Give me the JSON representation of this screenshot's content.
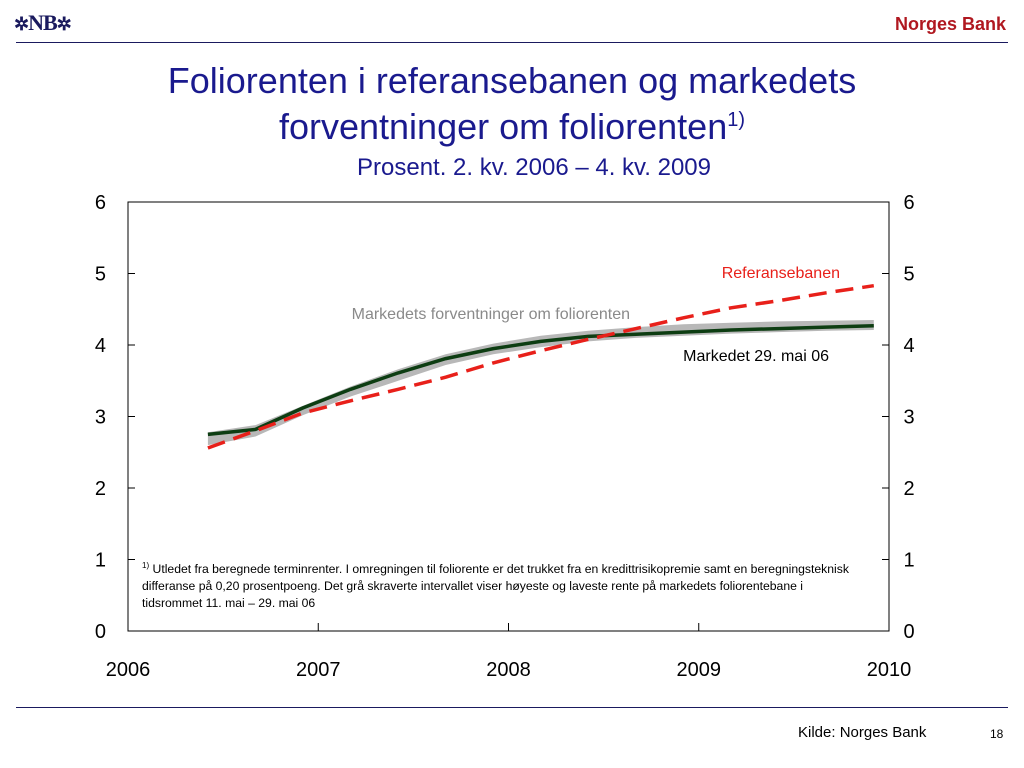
{
  "header": {
    "logo_text": "NB",
    "logo_ornament": "✲",
    "brand": "Norges Bank"
  },
  "title": {
    "line1": "Foliorenten i referansebanen og markedets",
    "line2": "forventninger om foliorenten",
    "superscript": "1)",
    "subtitle": "Prosent. 2. kv. 2006 – 4. kv. 2009"
  },
  "chart_data": {
    "type": "line",
    "xlim": [
      2006,
      2010
    ],
    "ylim": [
      0,
      6
    ],
    "x_ticks": [
      "2006",
      "2007",
      "2008",
      "2009",
      "2010"
    ],
    "y_ticks_left": [
      "0",
      "1",
      "2",
      "3",
      "4",
      "5",
      "6"
    ],
    "y_ticks_right": [
      "0",
      "1",
      "2",
      "3",
      "4",
      "5",
      "6"
    ],
    "colors": {
      "referansebanen": "#e8201a",
      "markedet": "#0d3d12",
      "band": "#b8b8b8",
      "band_label": "#8a8a8a"
    },
    "series": [
      {
        "name": "Referansebanen",
        "style": "dashed",
        "x": [
          2006.42,
          2006.67,
          2006.92,
          2007.17,
          2007.42,
          2007.67,
          2007.92,
          2008.17,
          2008.42,
          2008.67,
          2008.92,
          2009.17,
          2009.42,
          2009.67,
          2009.92
        ],
        "values": [
          2.56,
          2.8,
          3.05,
          3.22,
          3.38,
          3.55,
          3.75,
          3.92,
          4.08,
          4.23,
          4.38,
          4.52,
          4.62,
          4.73,
          4.83
        ]
      },
      {
        "name": "Markedet 29. mai 06",
        "style": "solid",
        "x": [
          2006.42,
          2006.67,
          2006.92,
          2007.17,
          2007.42,
          2007.67,
          2007.92,
          2008.17,
          2008.42,
          2008.67,
          2008.92,
          2009.17,
          2009.42,
          2009.67,
          2009.92
        ],
        "values": [
          2.75,
          2.82,
          3.12,
          3.38,
          3.61,
          3.81,
          3.95,
          4.05,
          4.12,
          4.15,
          4.18,
          4.21,
          4.23,
          4.25,
          4.27
        ]
      },
      {
        "name": "Markedets forventninger om foliorenten",
        "style": "band",
        "x": [
          2006.42,
          2006.67,
          2006.92,
          2007.17,
          2007.42,
          2007.67,
          2007.92,
          2008.17,
          2008.42,
          2008.67,
          2008.92,
          2009.17,
          2009.42,
          2009.67,
          2009.92
        ],
        "upper": [
          2.78,
          2.88,
          3.15,
          3.42,
          3.66,
          3.87,
          4.02,
          4.13,
          4.2,
          4.25,
          4.29,
          4.31,
          4.33,
          4.34,
          4.35
        ],
        "lower": [
          2.6,
          2.72,
          3.02,
          3.28,
          3.5,
          3.72,
          3.87,
          3.97,
          4.05,
          4.1,
          4.13,
          4.16,
          4.18,
          4.2,
          4.21
        ]
      }
    ],
    "annotations": {
      "referansebanen": "Referansebanen",
      "band": "Markedets forventninger om foliorenten",
      "markedet": "Markedet 29. mai 06"
    }
  },
  "footnote": {
    "marker": "1)",
    "text": "Utledet fra beregnede terminrenter. I omregningen til foliorente er det trukket fra en kredittrisikopremie samt en beregningsteknisk differanse på 0,20 prosentpoeng. Det grå skraverte intervallet viser høyeste og laveste rente på markedets foliorentebane i tidsrommet 11. mai – 29. mai 06"
  },
  "footer": {
    "source": "Kilde: Norges Bank",
    "page_number": "18"
  }
}
